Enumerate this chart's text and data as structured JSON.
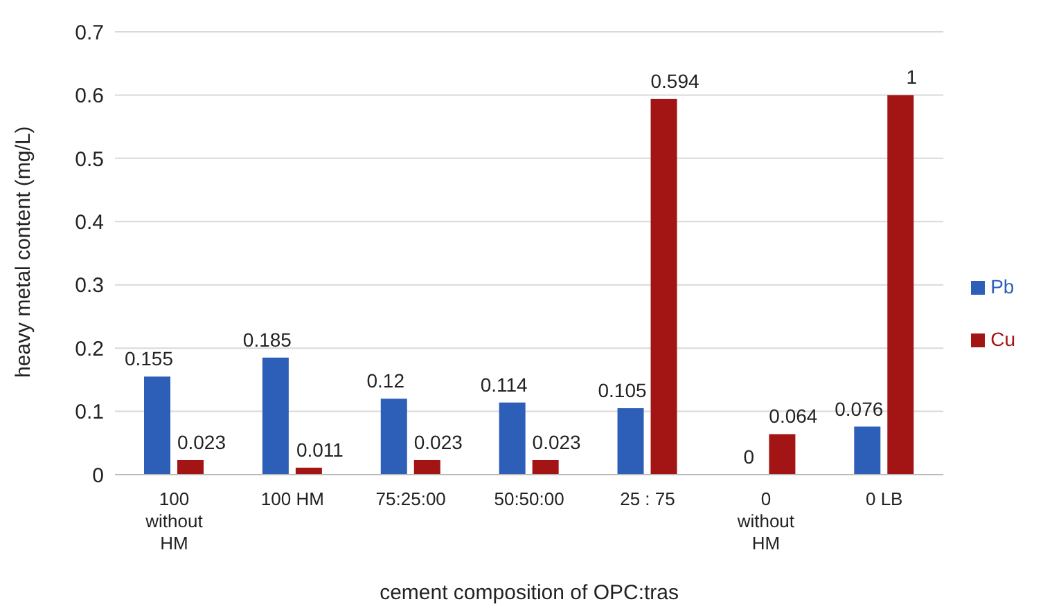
{
  "chart_data": {
    "type": "bar",
    "xlabel": "cement composition of OPC:tras",
    "ylabel": "heavy metal content (mg/L)",
    "categories": [
      "100 without HM",
      "100 HM",
      "75:25:00",
      "50:50:00",
      "25 : 75",
      "0 without HM",
      "0 LB"
    ],
    "series": [
      {
        "name": "Pb",
        "color": "#2e5fb8",
        "values": [
          0.155,
          0.185,
          0.12,
          0.114,
          0.105,
          0,
          0.076
        ],
        "value_labels": [
          "0.155",
          "0.185",
          "0.12",
          "0.114",
          "0.105",
          "0",
          "0.076"
        ]
      },
      {
        "name": "Cu",
        "color": "#a31414",
        "values": [
          0.023,
          0.011,
          0.023,
          0.023,
          0.594,
          0.064,
          0.6
        ],
        "value_labels": [
          "0.023",
          "0.011",
          "0.023",
          "0.023",
          "0.594",
          "0.064",
          "1"
        ]
      }
    ],
    "ylim": [
      0,
      0.7
    ],
    "yticks": [
      0,
      0.1,
      0.2,
      0.3,
      0.4,
      0.5,
      0.6,
      0.7
    ],
    "grid": "y",
    "legend": "right"
  }
}
